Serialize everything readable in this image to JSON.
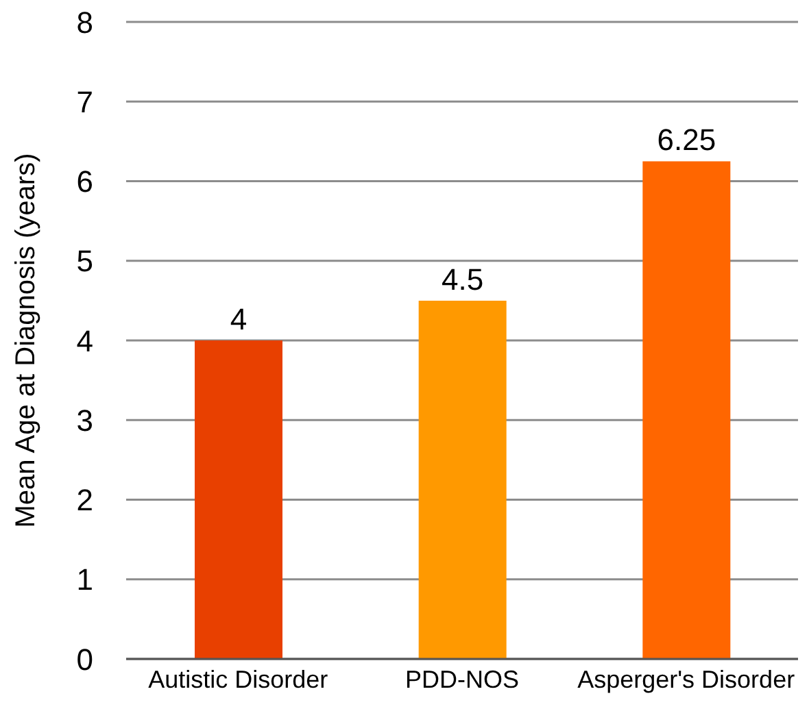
{
  "chart_data": {
    "type": "bar",
    "ylabel": "Mean Age at Diagnosis (years)",
    "categories": [
      "Autistic Disorder",
      "PDD-NOS",
      "Asperger's Disorder"
    ],
    "values": [
      4,
      4.5,
      6.25
    ],
    "colors": [
      "#e84000",
      "#ff9900",
      "#ff6600"
    ],
    "ylim": [
      0,
      8
    ],
    "yticks": [
      0,
      1,
      2,
      3,
      4,
      5,
      6,
      7,
      8
    ],
    "grid": "y",
    "data_labels": true
  }
}
